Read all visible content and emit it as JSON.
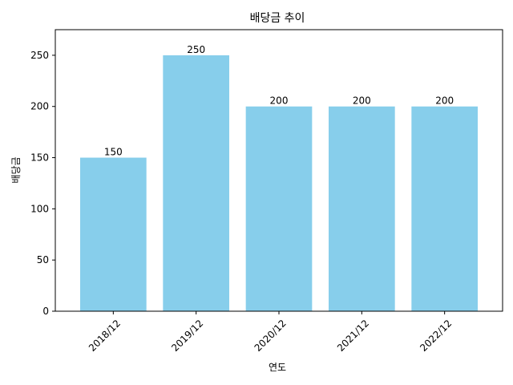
{
  "chart_data": {
    "type": "bar",
    "title": "배당금 추이",
    "xlabel": "연도",
    "ylabel": "배당금",
    "categories": [
      "2018/12",
      "2019/12",
      "2020/12",
      "2021/12",
      "2022/12"
    ],
    "values": [
      150,
      250,
      200,
      200,
      200
    ],
    "ylim": [
      0,
      275
    ],
    "yticks": [
      0,
      50,
      100,
      150,
      200,
      250
    ],
    "bar_color": "#87CEEB",
    "grid": false,
    "legend": false
  }
}
